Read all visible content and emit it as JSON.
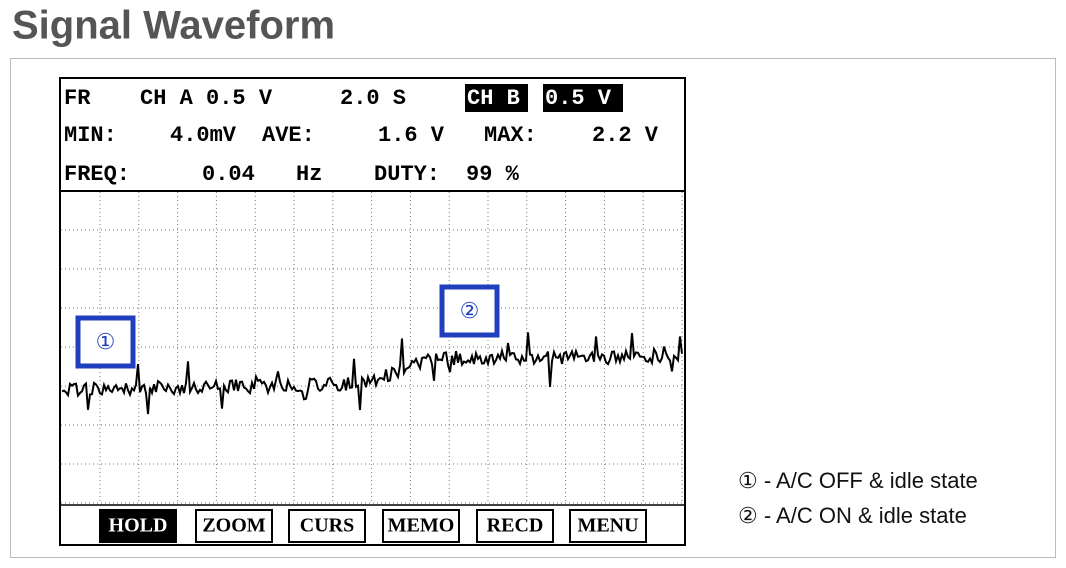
{
  "title": "Signal Waveform",
  "screen": {
    "header_rows": [
      [
        "FR",
        "CH A 0.5 V",
        "2.0 S",
        "CH B",
        "0.5 V"
      ],
      [
        "MIN:",
        "4.0mV",
        "AVE:",
        "1.6 V",
        "MAX:",
        "2.2 V"
      ],
      [
        "FREQ:",
        "0.04",
        "Hz",
        "DUTY:",
        "99 %"
      ]
    ],
    "buttons": [
      "HOLD",
      "ZOOM",
      "CURS",
      "MEMO",
      "RECD",
      "MENU"
    ],
    "markers": [
      "①",
      "②"
    ]
  },
  "legend": [
    "① - A/C OFF & idle state",
    "② - A/C ON & idle state"
  ]
}
